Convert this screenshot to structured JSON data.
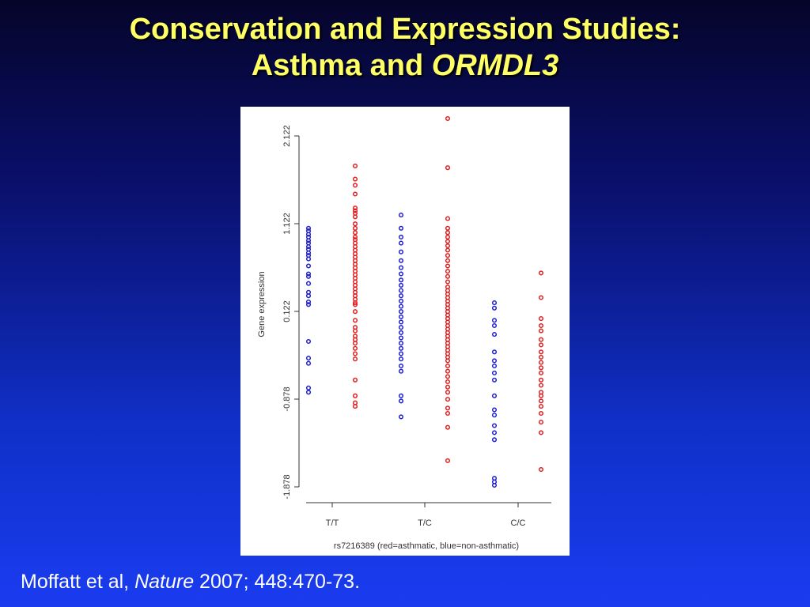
{
  "title": {
    "line1": "Conservation and Expression Studies:",
    "line2_prefix": "Asthma and ",
    "line2_gene": "ORMDL3"
  },
  "citation": {
    "authors": "Moffatt et al, ",
    "journal": "Nature",
    "details": " 2007; 448:470-73."
  },
  "chart_data": {
    "type": "scatter",
    "title": "",
    "xlabel": "rs7216389 (red=asthmatic, blue=non-asthmatic)",
    "ylabel": "Gene expression",
    "categories": [
      "T/T",
      "T/C",
      "C/C"
    ],
    "y_ticks": [
      "-1.878",
      "-0.878",
      "0.122",
      "1.122",
      "2.122"
    ],
    "ylim": [
      -1.878,
      2.122
    ],
    "grid": false,
    "colors": {
      "asthmatic": "#e02020",
      "non_asthmatic": "#2020d0"
    },
    "series": [
      {
        "key": "tt_non_asthmatic",
        "category": "T/T",
        "group": "non_asthmatic",
        "values": [
          1.07,
          1.04,
          1.0,
          0.97,
          0.93,
          0.9,
          0.86,
          0.83,
          0.79,
          0.76,
          0.72,
          0.64,
          0.55,
          0.52,
          0.44,
          0.34,
          0.3,
          0.23,
          0.2,
          -0.22,
          -0.41,
          -0.47,
          -0.75,
          -0.8
        ]
      },
      {
        "key": "tt_asthmatic",
        "category": "T/T",
        "group": "asthmatic",
        "values": [
          1.78,
          1.63,
          1.56,
          1.46,
          1.3,
          1.27,
          1.24,
          1.2,
          1.12,
          1.07,
          1.02,
          0.97,
          0.94,
          0.9,
          0.86,
          0.82,
          0.78,
          0.74,
          0.7,
          0.66,
          0.62,
          0.58,
          0.54,
          0.5,
          0.46,
          0.42,
          0.38,
          0.34,
          0.3,
          0.26,
          0.22,
          0.2,
          0.12,
          0.02,
          -0.06,
          -0.1,
          -0.16,
          -0.2,
          -0.24,
          -0.3,
          -0.36,
          -0.42,
          -0.66,
          -0.84,
          -0.92,
          -0.96
        ]
      },
      {
        "key": "tc_non_asthmatic",
        "category": "T/C",
        "group": "non_asthmatic",
        "values": [
          1.22,
          1.07,
          0.97,
          0.9,
          0.8,
          0.7,
          0.62,
          0.55,
          0.48,
          0.42,
          0.36,
          0.3,
          0.24,
          0.18,
          0.12,
          0.06,
          0.0,
          -0.06,
          -0.12,
          -0.18,
          -0.24,
          -0.3,
          -0.36,
          -0.42,
          -0.5,
          -0.56,
          -0.84,
          -0.9,
          -1.08
        ]
      },
      {
        "key": "tc_asthmatic",
        "category": "T/C",
        "group": "asthmatic",
        "values": [
          2.32,
          1.76,
          1.18,
          1.07,
          1.02,
          0.97,
          0.92,
          0.87,
          0.82,
          0.76,
          0.7,
          0.64,
          0.58,
          0.52,
          0.46,
          0.4,
          0.36,
          0.32,
          0.28,
          0.24,
          0.2,
          0.16,
          0.12,
          0.08,
          0.04,
          0.0,
          -0.04,
          -0.08,
          -0.12,
          -0.16,
          -0.2,
          -0.24,
          -0.28,
          -0.32,
          -0.36,
          -0.4,
          -0.44,
          -0.5,
          -0.56,
          -0.62,
          -0.68,
          -0.74,
          -0.8,
          -0.88,
          -0.98,
          -1.04,
          -1.2,
          -1.58
        ]
      },
      {
        "key": "cc_non_asthmatic",
        "category": "C/C",
        "group": "non_asthmatic",
        "values": [
          0.22,
          0.16,
          0.02,
          -0.04,
          -0.14,
          -0.34,
          -0.44,
          -0.5,
          -0.58,
          -0.66,
          -0.84,
          -1.0,
          -1.06,
          -1.18,
          -1.26,
          -1.34,
          -1.78,
          -1.82,
          -1.86
        ]
      },
      {
        "key": "cc_asthmatic",
        "category": "C/C",
        "group": "asthmatic",
        "values": [
          0.56,
          0.28,
          0.04,
          -0.04,
          -0.1,
          -0.2,
          -0.26,
          -0.34,
          -0.4,
          -0.46,
          -0.52,
          -0.58,
          -0.66,
          -0.72,
          -0.8,
          -0.84,
          -0.9,
          -0.96,
          -1.04,
          -1.14,
          -1.26,
          -1.68
        ]
      }
    ]
  }
}
